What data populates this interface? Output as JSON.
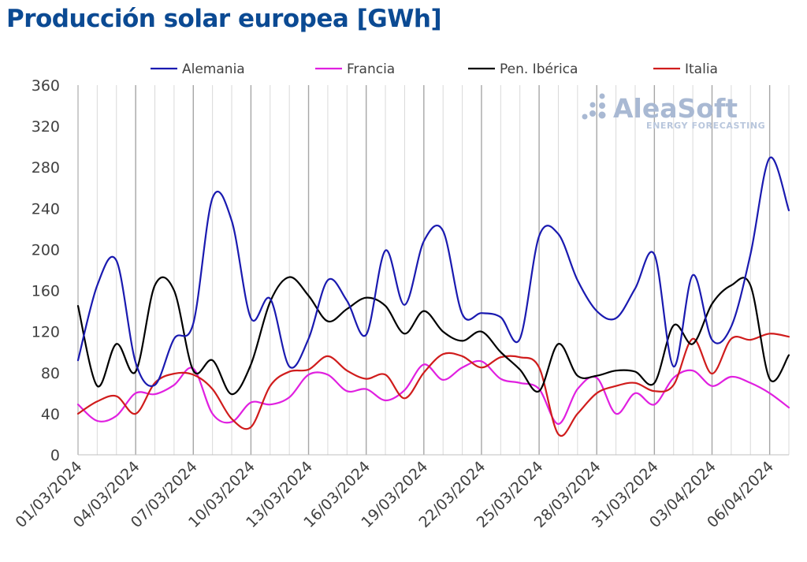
{
  "title": "Producción solar europea [GWh]",
  "logo": {
    "name": "AleaSoft",
    "tagline": "ENERGY FORECASTING",
    "color": "#a9b9d3"
  },
  "chart_data": {
    "type": "line",
    "title": "Producción solar europea [GWh]",
    "ylim": [
      0,
      360
    ],
    "yticks": [
      0,
      40,
      80,
      120,
      160,
      200,
      240,
      280,
      320,
      360
    ],
    "x": [
      "01/03/2024",
      "02/03/2024",
      "03/03/2024",
      "04/03/2024",
      "05/03/2024",
      "06/03/2024",
      "07/03/2024",
      "08/03/2024",
      "09/03/2024",
      "10/03/2024",
      "11/03/2024",
      "12/03/2024",
      "13/03/2024",
      "14/03/2024",
      "15/03/2024",
      "16/03/2024",
      "17/03/2024",
      "18/03/2024",
      "19/03/2024",
      "20/03/2024",
      "21/03/2024",
      "22/03/2024",
      "23/03/2024",
      "24/03/2024",
      "25/03/2024",
      "26/03/2024",
      "27/03/2024",
      "28/03/2024",
      "29/03/2024",
      "30/03/2024",
      "31/03/2024",
      "01/04/2024",
      "02/04/2024",
      "03/04/2024",
      "04/04/2024",
      "05/04/2024",
      "06/04/2024",
      "07/04/2024"
    ],
    "x_labels": [
      "01/03/2024",
      "04/03/2024",
      "07/03/2024",
      "10/03/2024",
      "13/03/2024",
      "16/03/2024",
      "19/03/2024",
      "22/03/2024",
      "25/03/2024",
      "28/03/2024",
      "31/03/2024",
      "03/04/2024",
      "06/04/2024"
    ],
    "grid": {
      "vertical": true,
      "horizontal": false
    },
    "legend_position": "top",
    "series": [
      {
        "name": "Alemania",
        "color": "#1a1ab0",
        "values": [
          92,
          165,
          189,
          90,
          68,
          113,
          128,
          250,
          228,
          133,
          152,
          86,
          113,
          170,
          150,
          117,
          199,
          146,
          208,
          218,
          137,
          138,
          134,
          113,
          213,
          215,
          170,
          140,
          133,
          162,
          195,
          86,
          175,
          112,
          125,
          195,
          289,
          238
        ]
      },
      {
        "name": "Francia",
        "color": "#e020e0",
        "values": [
          49,
          33,
          38,
          60,
          59,
          68,
          84,
          40,
          32,
          51,
          49,
          56,
          78,
          78,
          62,
          64,
          53,
          63,
          88,
          73,
          85,
          91,
          74,
          70,
          64,
          30,
          64,
          75,
          40,
          60,
          49,
          75,
          82,
          67,
          76,
          70,
          60,
          46
        ]
      },
      {
        "name": "Pen. Ibérica",
        "color": "#000000",
        "values": [
          145,
          67,
          108,
          81,
          165,
          160,
          82,
          92,
          59,
          88,
          149,
          173,
          155,
          130,
          142,
          153,
          145,
          118,
          140,
          120,
          111,
          120,
          100,
          83,
          62,
          108,
          77,
          77,
          82,
          81,
          70,
          126,
          108,
          147,
          165,
          165,
          74,
          97
        ]
      },
      {
        "name": "Italia",
        "color": "#d01c1c",
        "values": [
          40,
          52,
          57,
          40,
          70,
          79,
          78,
          64,
          35,
          27,
          67,
          81,
          83,
          96,
          82,
          74,
          78,
          55,
          80,
          98,
          96,
          85,
          95,
          95,
          85,
          20,
          40,
          60,
          67,
          70,
          62,
          68,
          113,
          79,
          113,
          112,
          118,
          115
        ]
      }
    ]
  }
}
